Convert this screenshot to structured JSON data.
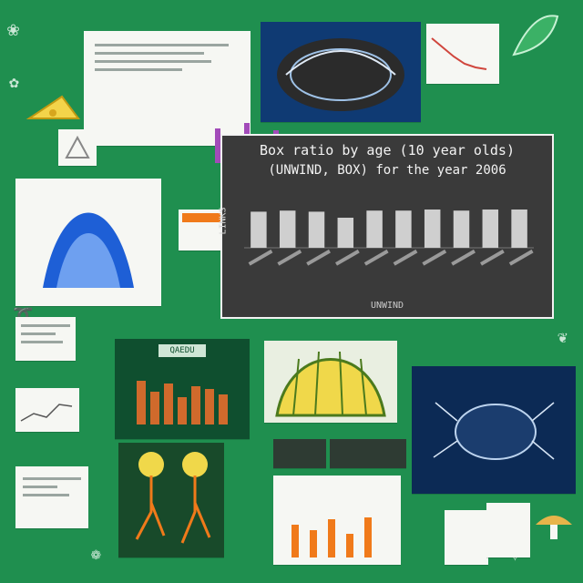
{
  "chart_data": {
    "type": "bar",
    "title": "Box ratio by age (10 year olds)",
    "subtitle": "(UNWIND, BOX) for the year 2006",
    "xlabel": "UNWIND",
    "ylabel": "LINKS",
    "categories": [
      "",
      "",
      "",
      "",
      "",
      "",
      "",
      "",
      "",
      ""
    ],
    "values": [
      0.66,
      0.68,
      0.66,
      0.55,
      0.68,
      0.68,
      0.7,
      0.68,
      0.7,
      0.7
    ],
    "ylim": [
      0,
      1
    ],
    "grid": false,
    "bar_color": "#cfcfcf",
    "background": "#3a3a3a"
  },
  "mini_tile": {
    "title": "QAEDU",
    "values": [
      0.8,
      0.6,
      0.75,
      0.5,
      0.7,
      0.65,
      0.55
    ]
  },
  "colors": {
    "page_background": "#1f8f4f",
    "accent_blue": "#1e5fd6",
    "accent_orange": "#f07a1a",
    "accent_yellow": "#f0d84a"
  },
  "icons": [
    "leaf-icon",
    "cube-icon",
    "beetle-icon",
    "mushroom-icon",
    "corn-icon",
    "plant-roots-icon"
  ]
}
